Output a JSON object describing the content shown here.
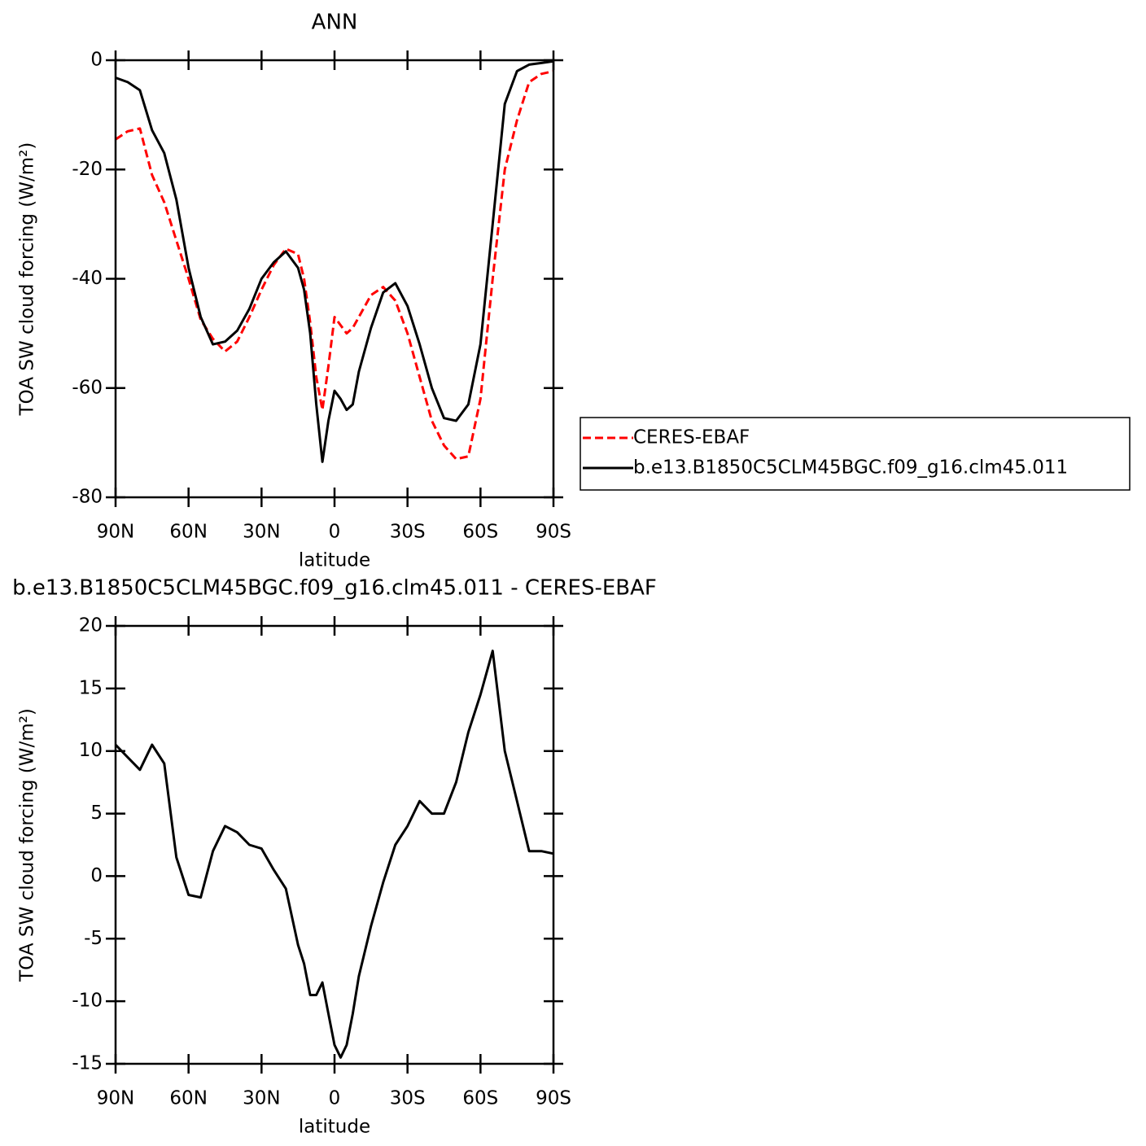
{
  "chart_data": [
    {
      "type": "line",
      "title": "ANN",
      "x_label": "latitude",
      "y_label": "TOA SW cloud forcing (W/m²)",
      "x": [
        90,
        85,
        80,
        75,
        70,
        65,
        60,
        55,
        50,
        45,
        40,
        35,
        30,
        25,
        20,
        15,
        12.5,
        10,
        7.5,
        5,
        2.5,
        0,
        -2.5,
        -5,
        -7.5,
        -10,
        -15,
        -20,
        -25,
        -30,
        -35,
        -40,
        -45,
        -50,
        -55,
        -60,
        -65,
        -70,
        -75,
        -80,
        -85,
        -90
      ],
      "series": [
        {
          "name": "CERES-EBAF",
          "color": "#ff0000",
          "linestyle": "dashed",
          "values": [
            -14.5,
            -13,
            -12.5,
            -21,
            -26,
            -33,
            -40,
            -47.5,
            -51,
            -53.3,
            -51.5,
            -47,
            -42,
            -37.5,
            -34.5,
            -35.5,
            -40,
            -48,
            -58,
            -64,
            -56,
            -47,
            -48.5,
            -50,
            -49,
            -47,
            -43,
            -41.5,
            -44,
            -50,
            -58,
            -66,
            -70.5,
            -73,
            -72.5,
            -62,
            -40,
            -20,
            -11,
            -4,
            -2.5,
            -2
          ]
        },
        {
          "name": "b.e13.B1850C5CLM45BGC.f09_g16.clm45.011",
          "color": "#000000",
          "linestyle": "solid",
          "values": [
            -3.2,
            -4,
            -5.5,
            -12.8,
            -17,
            -25.5,
            -38,
            -47,
            -52,
            -51.5,
            -49.5,
            -45.5,
            -40,
            -37,
            -35,
            -38,
            -42,
            -50,
            -63,
            -73.5,
            -66,
            -60.5,
            -62,
            -64,
            -63,
            -57,
            -49,
            -42.5,
            -40.8,
            -45,
            -52,
            -60,
            -65.5,
            -66,
            -63,
            -52,
            -30,
            -8,
            -2,
            -0.8,
            -0.5,
            -0.2
          ]
        }
      ],
      "xlim": [
        90,
        -90
      ],
      "xticks": [
        {
          "value": 90,
          "label": "90N"
        },
        {
          "value": 60,
          "label": "60N"
        },
        {
          "value": 30,
          "label": "30N"
        },
        0,
        {
          "value": -30,
          "label": "30S"
        },
        {
          "value": -60,
          "label": "60S"
        },
        {
          "value": -90,
          "label": "90S"
        }
      ],
      "ylim": [
        -80,
        0
      ],
      "yticks": [
        0,
        -20,
        -40,
        -60,
        -80
      ],
      "legend": "right"
    },
    {
      "type": "line",
      "title": "b.e13.B1850C5CLM45BGC.f09_g16.clm45.011 - CERES-EBAF",
      "x_label": "latitude",
      "y_label": "TOA SW cloud forcing (W/m²)",
      "x": [
        90,
        85,
        80,
        75,
        70,
        65,
        60,
        55,
        50,
        45,
        40,
        35,
        30,
        25,
        20,
        15,
        12.5,
        10,
        7.5,
        5,
        2.5,
        0,
        -2.5,
        -5,
        -7.5,
        -10,
        -15,
        -20,
        -25,
        -30,
        -35,
        -40,
        -45,
        -50,
        -55,
        -60,
        -65,
        -70,
        -75,
        -80,
        -85,
        -90
      ],
      "series": [
        {
          "color": "#000000",
          "linestyle": "solid",
          "values": [
            10.5,
            9.5,
            8.5,
            10.5,
            9,
            1.5,
            -1.5,
            -1.7,
            2,
            4,
            3.5,
            2.5,
            2.2,
            0.5,
            -1,
            -5.5,
            -7,
            -9.5,
            -9.5,
            -8.5,
            -11,
            -13.5,
            -14.5,
            -13.5,
            -11,
            -8,
            -4,
            -0.5,
            2.5,
            4,
            6,
            5,
            5,
            7.5,
            11.5,
            14.5,
            18,
            10,
            6,
            2,
            2,
            1.8
          ]
        }
      ],
      "xlim": [
        90,
        -90
      ],
      "xticks": [
        {
          "value": 90,
          "label": "90N"
        },
        {
          "value": 60,
          "label": "60N"
        },
        {
          "value": 30,
          "label": "30N"
        },
        0,
        {
          "value": -30,
          "label": "30S"
        },
        {
          "value": -60,
          "label": "60S"
        },
        {
          "value": -90,
          "label": "90S"
        }
      ],
      "ylim": [
        -15,
        20
      ],
      "yticks": [
        20,
        15,
        10,
        5,
        0,
        -5,
        -10,
        -15
      ]
    }
  ]
}
